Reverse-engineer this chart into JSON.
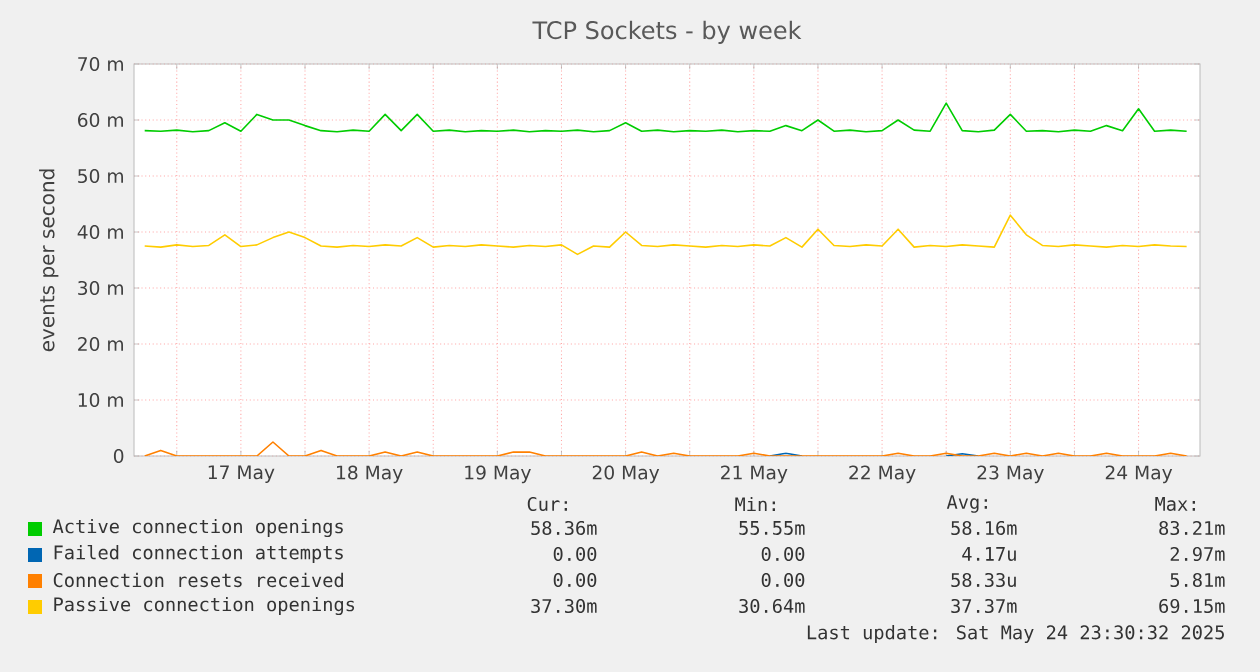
{
  "chart_data": {
    "type": "line",
    "title": "TCP Sockets - by week",
    "ylabel": "events per second",
    "x": [
      "2025-05-16T18:00",
      "2025-05-16T21:00",
      "2025-05-17T00:00",
      "2025-05-17T03:00",
      "2025-05-17T06:00",
      "2025-05-17T09:00",
      "2025-05-17T12:00",
      "2025-05-17T15:00",
      "2025-05-17T18:00",
      "2025-05-17T21:00",
      "2025-05-18T00:00",
      "2025-05-18T03:00",
      "2025-05-18T06:00",
      "2025-05-18T09:00",
      "2025-05-18T12:00",
      "2025-05-18T15:00",
      "2025-05-18T18:00",
      "2025-05-18T21:00",
      "2025-05-19T00:00",
      "2025-05-19T03:00",
      "2025-05-19T06:00",
      "2025-05-19T09:00",
      "2025-05-19T12:00",
      "2025-05-19T15:00",
      "2025-05-19T18:00",
      "2025-05-19T21:00",
      "2025-05-20T00:00",
      "2025-05-20T03:00",
      "2025-05-20T06:00",
      "2025-05-20T09:00",
      "2025-05-20T12:00",
      "2025-05-20T15:00",
      "2025-05-20T18:00",
      "2025-05-20T21:00",
      "2025-05-21T00:00",
      "2025-05-21T03:00",
      "2025-05-21T06:00",
      "2025-05-21T09:00",
      "2025-05-21T12:00",
      "2025-05-21T15:00",
      "2025-05-21T18:00",
      "2025-05-21T21:00",
      "2025-05-22T00:00",
      "2025-05-22T03:00",
      "2025-05-22T06:00",
      "2025-05-22T09:00",
      "2025-05-22T12:00",
      "2025-05-22T15:00",
      "2025-05-22T18:00",
      "2025-05-22T21:00",
      "2025-05-23T00:00",
      "2025-05-23T03:00",
      "2025-05-23T06:00",
      "2025-05-23T09:00",
      "2025-05-23T12:00",
      "2025-05-23T15:00",
      "2025-05-23T18:00",
      "2025-05-23T21:00",
      "2025-05-24T00:00",
      "2025-05-24T03:00",
      "2025-05-24T06:00",
      "2025-05-24T09:00",
      "2025-05-24T12:00",
      "2025-05-24T15:00",
      "2025-05-24T18:00",
      "2025-05-24T21:00"
    ],
    "series": [
      {
        "name": "Active connection openings",
        "color": "#00cc00",
        "values": [
          58.1,
          58.0,
          58.2,
          57.9,
          58.1,
          59.5,
          58.0,
          61,
          60,
          60,
          59,
          58.1,
          57.9,
          58.2,
          58.0,
          61,
          58.1,
          61,
          58.0,
          58.2,
          57.9,
          58.1,
          58.0,
          58.2,
          57.9,
          58.1,
          58.0,
          58.2,
          57.9,
          58.1,
          59.5,
          58.0,
          58.2,
          57.9,
          58.1,
          58.0,
          58.2,
          57.9,
          58.1,
          58.0,
          59,
          58.1,
          60,
          58.0,
          58.2,
          57.9,
          58.1,
          60,
          58.2,
          58.0,
          63,
          58.1,
          57.9,
          58.2,
          61,
          58.0,
          58.1,
          57.9,
          58.2,
          58.0,
          59,
          58.1,
          62,
          58.0,
          58.2,
          58.0
        ]
      },
      {
        "name": "Failed connection attempts",
        "color": "#0066b3",
        "values": [
          null,
          null,
          null,
          null,
          null,
          null,
          null,
          null,
          null,
          null,
          null,
          null,
          null,
          null,
          null,
          null,
          null,
          null,
          null,
          null,
          null,
          null,
          null,
          null,
          null,
          null,
          null,
          null,
          null,
          null,
          null,
          null,
          null,
          null,
          null,
          null,
          null,
          null,
          null,
          0,
          0.5,
          0,
          null,
          null,
          null,
          null,
          null,
          null,
          null,
          null,
          0,
          0.4,
          0,
          null,
          null,
          null,
          null,
          null,
          null,
          null,
          null,
          null,
          null,
          null,
          null,
          null
        ]
      },
      {
        "name": "Connection resets received",
        "color": "#ff8000",
        "values": [
          0,
          1,
          0,
          0,
          0,
          0,
          0,
          0,
          2.5,
          0,
          0,
          1,
          0,
          0,
          0,
          0.7,
          0,
          0.7,
          0,
          0,
          0,
          0,
          0,
          0.7,
          0.7,
          0,
          0,
          0,
          0,
          0,
          0,
          0.7,
          0,
          0.5,
          0,
          0,
          0,
          0,
          0.5,
          0,
          0,
          0,
          0,
          0,
          0,
          0,
          0,
          0.5,
          0,
          0,
          0.5,
          0,
          0,
          0.5,
          0,
          0.5,
          0,
          0.5,
          0,
          0,
          0.5,
          0,
          0,
          0,
          0.5,
          0
        ]
      },
      {
        "name": "Passive connection openings",
        "color": "#ffcc00",
        "values": [
          37.5,
          37.3,
          37.7,
          37.4,
          37.6,
          39.5,
          37.4,
          37.7,
          39,
          40,
          39,
          37.5,
          37.3,
          37.6,
          37.4,
          37.7,
          37.5,
          39,
          37.3,
          37.6,
          37.4,
          37.7,
          37.5,
          37.3,
          37.6,
          37.4,
          37.7,
          36,
          37.5,
          37.3,
          40,
          37.6,
          37.4,
          37.7,
          37.5,
          37.3,
          37.6,
          37.4,
          37.7,
          37.5,
          39,
          37.3,
          40.5,
          37.6,
          37.4,
          37.7,
          37.5,
          40.5,
          37.3,
          37.6,
          37.4,
          37.7,
          37.5,
          37.3,
          43,
          39.5,
          37.6,
          37.4,
          37.7,
          37.5,
          37.3,
          37.6,
          37.4,
          37.7,
          37.5,
          37.4
        ]
      }
    ],
    "xlim": [
      "2025-05-16T16:00",
      "2025-05-24T23:30"
    ],
    "xticks": [
      {
        "value": "2025-05-17T00:00",
        "label": null
      },
      {
        "value": "2025-05-17T12:00",
        "label": "17 May"
      },
      {
        "value": "2025-05-18T00:00",
        "label": null
      },
      {
        "value": "2025-05-18T12:00",
        "label": "18 May"
      },
      {
        "value": "2025-05-19T00:00",
        "label": null
      },
      {
        "value": "2025-05-19T12:00",
        "label": "19 May"
      },
      {
        "value": "2025-05-20T00:00",
        "label": null
      },
      {
        "value": "2025-05-20T12:00",
        "label": "20 May"
      },
      {
        "value": "2025-05-21T00:00",
        "label": null
      },
      {
        "value": "2025-05-21T12:00",
        "label": "21 May"
      },
      {
        "value": "2025-05-22T00:00",
        "label": null
      },
      {
        "value": "2025-05-22T12:00",
        "label": "22 May"
      },
      {
        "value": "2025-05-23T00:00",
        "label": null
      },
      {
        "value": "2025-05-23T12:00",
        "label": "23 May"
      },
      {
        "value": "2025-05-24T00:00",
        "label": null
      },
      {
        "value": "2025-05-24T12:00",
        "label": "24 May"
      }
    ],
    "ylim": [
      0,
      70
    ],
    "yticks": [
      {
        "value": 0,
        "label": "0"
      },
      {
        "value": 10,
        "label": "10 m"
      },
      {
        "value": 20,
        "label": "20 m"
      },
      {
        "value": 30,
        "label": "30 m"
      },
      {
        "value": 40,
        "label": "40 m"
      },
      {
        "value": 50,
        "label": "50 m"
      },
      {
        "value": 60,
        "label": "60 m"
      },
      {
        "value": 70,
        "label": "70 m"
      }
    ],
    "grid": true,
    "legend": "bottom",
    "annotations": [
      "Cur:",
      "Min:",
      "Avg:",
      "Max:",
      "58.36m",
      "55.55m",
      "58.16m",
      "83.21m",
      "0.00",
      "0.00",
      "4.17u",
      "2.97m",
      "0.00",
      "0.00",
      "58.33u",
      "5.81m",
      "37.30m",
      "30.64m",
      "37.37m",
      "69.15m",
      "Last update: Sat May 24 23:30:32 2025"
    ]
  }
}
